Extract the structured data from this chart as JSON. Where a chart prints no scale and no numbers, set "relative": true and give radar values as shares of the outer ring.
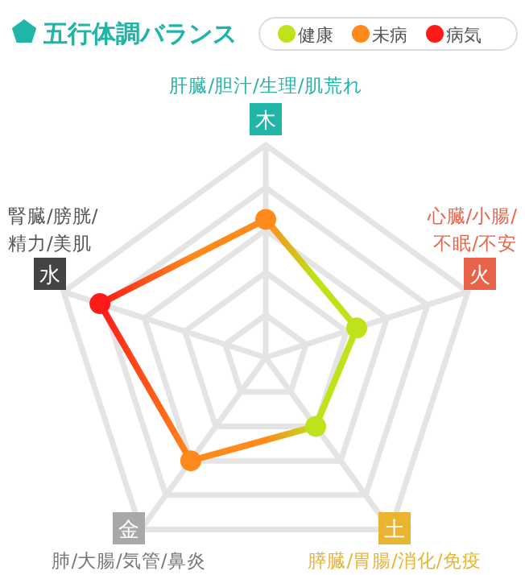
{
  "chart_data": {
    "type": "radar",
    "title": "五行体調バランス",
    "relative": true,
    "grid": true,
    "categories": [
      "木",
      "火",
      "土",
      "金",
      "水"
    ],
    "annotations": [
      "肝臓/胆汁/生理/肌荒れ",
      "心臓/小腸/\n不眠/不安",
      "膵臓/胃腸/消化/免疫",
      "肺/大腸/気管/鼻炎",
      "腎臓/膀胱/\n精力/美肌",
      "健康",
      "未病",
      "病気"
    ],
    "series": [
      {
        "values": [
          0.65,
          0.45,
          0.4,
          0.6,
          0.82
        ],
        "colors": [
          "#ff8a1c",
          "#bfe31a",
          "#bfe31a",
          "#ff8a1c",
          "#ff1a1a"
        ]
      }
    ]
  }
}
